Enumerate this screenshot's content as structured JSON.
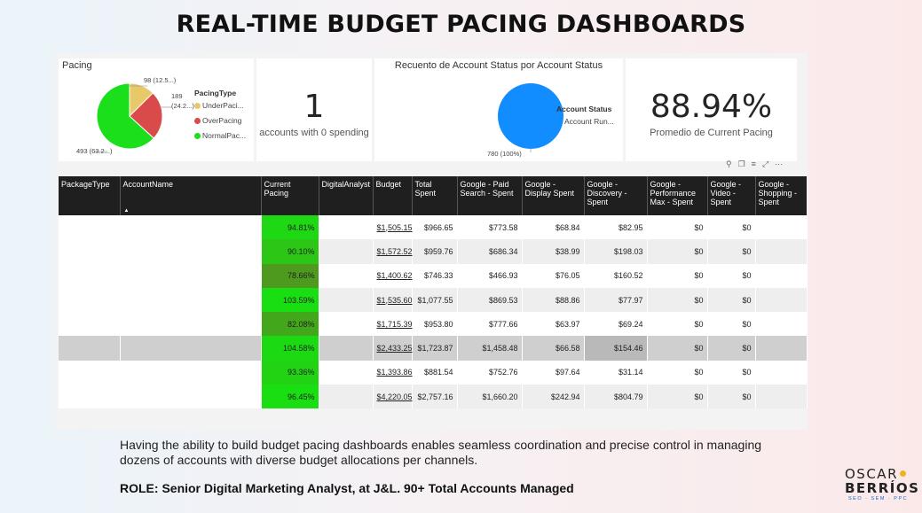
{
  "headline": "REAL-TIME BUDGET PACING DASHBOARDS",
  "pacing_card": {
    "title": "Pacing",
    "legend_title": "PacingType",
    "legend": [
      {
        "label": "UnderPaci...",
        "color": "#e8c96a"
      },
      {
        "label": "OverPacing",
        "color": "#d94a4a"
      },
      {
        "label": "NormalPac...",
        "color": "#1adf1a"
      }
    ],
    "slice_labels": {
      "under": "98 (12.5...)",
      "over_1": "189",
      "over_2": "(24.2...)",
      "normal": "493 (63.2...)"
    }
  },
  "zero_card": {
    "value": "1",
    "label": "accounts with 0 spending"
  },
  "status_card": {
    "title": "Recuento de Account Status por Account Status",
    "legend_title": "Account Status",
    "legend_item": "Account Run...",
    "legend_color": "#118dff",
    "slice_label": "780 (100%)"
  },
  "avg_card": {
    "value": "88.94%",
    "label": "Promedio de Current Pacing"
  },
  "chart_data": [
    {
      "type": "pie",
      "title": "Pacing",
      "legend_title": "PacingType",
      "categories": [
        "UnderPacing",
        "OverPacing",
        "NormalPacing"
      ],
      "values": [
        98,
        189,
        493
      ],
      "colors": [
        "#e8c96a",
        "#d94a4a",
        "#1adf1a"
      ]
    },
    {
      "type": "pie",
      "title": "Recuento de Account Status por Account Status",
      "legend_title": "Account Status",
      "categories": [
        "Account Run..."
      ],
      "values": [
        780
      ],
      "colors": [
        "#118dff"
      ]
    }
  ],
  "table": {
    "columns": [
      "PackageType",
      "AccountName",
      "Current Pacing",
      "DigitalAnalyst",
      "Budget",
      "Total Spent",
      "Google - Paid Search - Spent",
      "Google - Display Spent",
      "Google - Discovery - Spent",
      "Google - Performance Max - Spent",
      "Google - Video - Spent",
      "Google - Shopping - Spent"
    ],
    "rows": [
      {
        "pacing": "94.81%",
        "pacing_value": 94.81,
        "budget": "$1,505.15",
        "total": "$966.65",
        "search": "$773.58",
        "display": "$68.84",
        "discovery": "$82.95",
        "pmax": "$0",
        "video": "$0"
      },
      {
        "pacing": "90.10%",
        "pacing_value": 90.1,
        "budget": "$1,572.52",
        "total": "$959.76",
        "search": "$686.34",
        "display": "$38.99",
        "discovery": "$198.03",
        "pmax": "$0",
        "video": "$0"
      },
      {
        "pacing": "78.66%",
        "pacing_value": 78.66,
        "budget": "$1,400.62",
        "total": "$746.33",
        "search": "$466.93",
        "display": "$76.05",
        "discovery": "$160.52",
        "pmax": "$0",
        "video": "$0"
      },
      {
        "pacing": "103.59%",
        "pacing_value": 103.59,
        "budget": "$1,535.60",
        "total": "$1,077.55",
        "search": "$869.53",
        "display": "$88.86",
        "discovery": "$77.97",
        "pmax": "$0",
        "video": "$0"
      },
      {
        "pacing": "82.08%",
        "pacing_value": 82.08,
        "budget": "$1,715.39",
        "total": "$953.80",
        "search": "$777.66",
        "display": "$63.97",
        "discovery": "$69.24",
        "pmax": "$0",
        "video": "$0"
      },
      {
        "pacing": "104.58%",
        "pacing_value": 104.58,
        "budget": "$2,433.25",
        "total": "$1,723.87",
        "search": "$1,458.48",
        "display": "$66.58",
        "discovery": "$154.46",
        "pmax": "$0",
        "video": "$0"
      },
      {
        "pacing": "93.36%",
        "pacing_value": 93.36,
        "budget": "$1,393.86",
        "total": "$881.54",
        "search": "$752.76",
        "display": "$97.64",
        "discovery": "$31.14",
        "pmax": "$0",
        "video": "$0"
      },
      {
        "pacing": "96.45%",
        "pacing_value": 96.45,
        "budget": "$4,220.05",
        "total": "$2,757.16",
        "search": "$1,660.20",
        "display": "$242.94",
        "discovery": "$804.79",
        "pmax": "$0",
        "video": "$0"
      }
    ]
  },
  "description": "Having the ability to build budget pacing dashboards enables seamless coordination and precise control in managing dozens of accounts with diverse budget allocations per channels.",
  "role": "ROLE: Senior Digital Marketing Analyst, at J&L. 90+ Total Accounts Managed",
  "logo": {
    "line1": "OSCAR",
    "line2": "BERRÍOS",
    "tagline": "SEO · SEM · PPC"
  }
}
